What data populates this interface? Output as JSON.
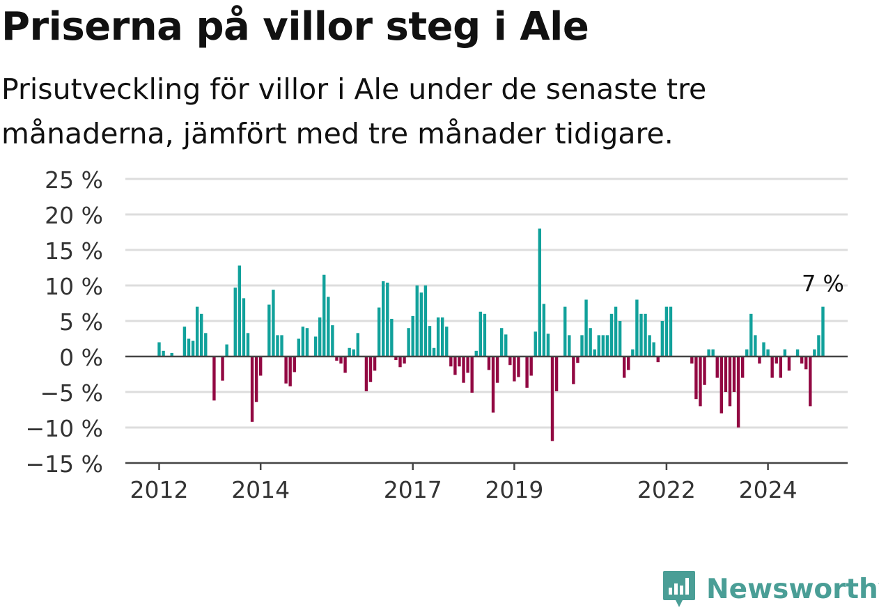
{
  "header": {
    "title": "Priserna på villor steg i Ale",
    "subtitle": "Prisutveckling för villor i Ale under de senaste tre månaderna, jämfört med tre månader tidigare."
  },
  "brand": {
    "name": "Newsworthy",
    "icon": "newsworthy-logo-icon",
    "color": "#4a9e96"
  },
  "colors": {
    "positive": "#11a19b",
    "negative": "#920842",
    "grid": "#dddddd",
    "axis": "#444444"
  },
  "chart_data": {
    "type": "bar",
    "title": "Priserna på villor steg i Ale",
    "subtitle": "Prisutveckling för villor i Ale under de senaste tre månaderna, jämfört med tre månader tidigare.",
    "xlabel": "",
    "ylabel": "",
    "ylim": [
      -15,
      25
    ],
    "yticks": [
      25,
      20,
      15,
      10,
      5,
      0,
      -5,
      -10,
      -15
    ],
    "ytick_labels": [
      "25 %",
      "20 %",
      "15 %",
      "10 %",
      "5 %",
      "0 %",
      "−5 %",
      "−10 %",
      "−15 %"
    ],
    "xticks": [
      "2012",
      "2014",
      "2017",
      "2019",
      "2022",
      "2024"
    ],
    "x_start": "2012-01",
    "x_end": "2025-01",
    "frequency": "monthly",
    "annotation": {
      "text": "7 %",
      "position": "last-bar"
    },
    "grid": true,
    "series": [
      {
        "values": [
          2,
          0.8,
          0,
          0.5,
          0,
          0,
          4.2,
          2.5,
          2.2,
          7,
          6,
          3.3,
          0,
          -6.2,
          0,
          -3.4,
          1.7,
          0,
          9.7,
          12.8,
          8.2,
          3.3,
          -9.2,
          -6.4,
          -2.7,
          0,
          7.3,
          9.4,
          3,
          3,
          -3.8,
          -4.2,
          -2.2,
          2.5,
          4.2,
          4,
          0,
          2.8,
          5.5,
          11.5,
          8.4,
          4.4,
          -0.6,
          -1,
          -2.3,
          1.2,
          1,
          3.3,
          0,
          -4.9,
          -3.6,
          -2,
          6.9,
          10.6,
          10.4,
          5.3,
          -0.5,
          -1.5,
          -1,
          4,
          5.7,
          10,
          9,
          10,
          4.3,
          1.2,
          5.5,
          5.5,
          4.2,
          -1.4,
          -2.6,
          -1.4,
          -3.7,
          -2.3,
          -5.1,
          0.8,
          6.3,
          6,
          -1.9,
          -7.9,
          -3.7,
          4,
          3.1,
          -1.2,
          -3.5,
          -2.9,
          0,
          -4.4,
          -2.7,
          3.5,
          18,
          7.4,
          3.2,
          -11.9,
          -4.9,
          0,
          7,
          3,
          -3.9,
          -0.9,
          3,
          8,
          4,
          1,
          3,
          3,
          3,
          6,
          7,
          5,
          -3,
          -1.9,
          1,
          8,
          6,
          6,
          3,
          2,
          -0.8,
          5,
          7,
          7,
          0,
          0,
          0,
          0,
          -1,
          -6,
          -7,
          -4,
          1,
          1,
          -3,
          -8,
          -5,
          -7,
          -5,
          -10,
          -3,
          1,
          6,
          3,
          -1,
          2,
          1,
          -3,
          -1,
          -3,
          1,
          -2,
          0,
          1,
          -1,
          -1.8,
          -7,
          1,
          3,
          7
        ]
      }
    ]
  }
}
